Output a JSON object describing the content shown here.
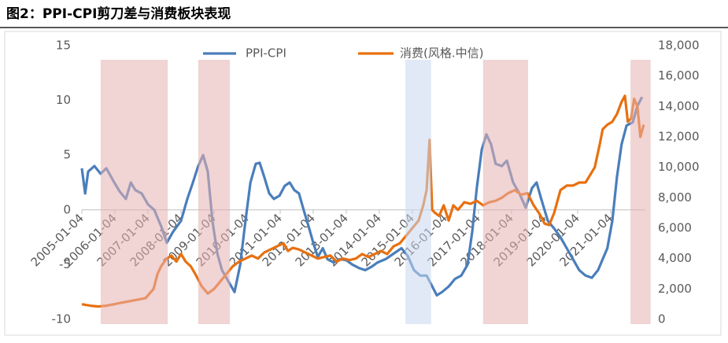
{
  "chart_data": {
    "type": "line",
    "title": "图2：PPI-CPI剪刀差与消费板块表现",
    "xlim": [
      2005,
      2022.05
    ],
    "xticks": [
      {
        "value": 2005,
        "label": "2005-01-04"
      },
      {
        "value": 2006,
        "label": "2006-01-04"
      },
      {
        "value": 2007,
        "label": "2007-01-04"
      },
      {
        "value": 2008,
        "label": "2008-01-04"
      },
      {
        "value": 2009,
        "label": "2009-01-04"
      },
      {
        "value": 2010,
        "label": "2010-01-04"
      },
      {
        "value": 2011,
        "label": "2011-01-04"
      },
      {
        "value": 2012,
        "label": "2012-01-04"
      },
      {
        "value": 2013,
        "label": "2013-01-04"
      },
      {
        "value": 2014,
        "label": "2014-01-04"
      },
      {
        "value": 2015,
        "label": "2015-01-04"
      },
      {
        "value": 2016,
        "label": "2016-01-04"
      },
      {
        "value": 2017,
        "label": "2017-01-04"
      },
      {
        "value": 2018,
        "label": "2018-01-04"
      },
      {
        "value": 2019,
        "label": "2019-01-04"
      },
      {
        "value": 2020,
        "label": "2020-01-04"
      },
      {
        "value": 2021,
        "label": "2021-01-04"
      }
    ],
    "ylim": [
      -10,
      15
    ],
    "yticks": [
      15,
      10,
      5,
      0,
      -5,
      -10
    ],
    "y2lim": [
      0,
      18000
    ],
    "y2ticks": [
      {
        "value": 18000,
        "label": "18,000"
      },
      {
        "value": 16000,
        "label": "16,000"
      },
      {
        "value": 14000,
        "label": "14,000"
      },
      {
        "value": 12000,
        "label": "12,000"
      },
      {
        "value": 10000,
        "label": "10,000"
      },
      {
        "value": 8000,
        "label": "8,000"
      },
      {
        "value": 6000,
        "label": "6,000"
      },
      {
        "value": 4000,
        "label": "4,000"
      },
      {
        "value": 2000,
        "label": "2,000"
      },
      0
    ],
    "shaded_regions": [
      {
        "start": 2005.57,
        "end": 2007.6,
        "color": "#e6b0b0"
      },
      {
        "start": 2008.52,
        "end": 2009.48,
        "color": "#e6b0b0"
      },
      {
        "start": 2014.79,
        "end": 2015.57,
        "color": "#c9d7ee"
      },
      {
        "start": 2017.14,
        "end": 2018.5,
        "color": "#e6b0b0"
      },
      {
        "start": 2021.6,
        "end": 2022.21,
        "color": "#e6b0b0"
      }
    ],
    "series": [
      {
        "name": "PPI-CPI",
        "color": "#4a7ebb",
        "x": [
          2005.0,
          2005.1,
          2005.19,
          2005.38,
          2005.57,
          2005.74,
          2005.98,
          2006.14,
          2006.33,
          2006.48,
          2006.62,
          2006.81,
          2007.0,
          2007.19,
          2007.4,
          2007.57,
          2007.76,
          2008.0,
          2008.19,
          2008.36,
          2008.52,
          2008.67,
          2008.81,
          2008.95,
          2009.1,
          2009.24,
          2009.43,
          2009.62,
          2009.79,
          2009.95,
          2010.1,
          2010.26,
          2010.38,
          2010.52,
          2010.67,
          2010.81,
          2010.98,
          2011.14,
          2011.29,
          2011.43,
          2011.57,
          2011.71,
          2011.86,
          2012.0,
          2012.14,
          2012.29,
          2012.43,
          2012.62,
          2012.81,
          2013.0,
          2013.19,
          2013.38,
          2013.57,
          2013.76,
          2013.95,
          2014.19,
          2014.43,
          2014.67,
          2014.86,
          2015.05,
          2015.24,
          2015.43,
          2015.57,
          2015.74,
          2015.9,
          2016.1,
          2016.29,
          2016.48,
          2016.67,
          2016.81,
          2016.95,
          2017.1,
          2017.24,
          2017.38,
          2017.52,
          2017.71,
          2017.86,
          2018.05,
          2018.24,
          2018.43,
          2018.62,
          2018.76,
          2018.9,
          2019.1,
          2019.29,
          2019.48,
          2019.67,
          2019.86,
          2020.05,
          2020.24,
          2020.43,
          2020.62,
          2020.76,
          2020.9,
          2021.05,
          2021.19,
          2021.33,
          2021.48,
          2021.67,
          2021.81,
          2021.95
        ],
        "values": [
          3.8,
          1.5,
          3.5,
          4.0,
          3.3,
          3.8,
          2.5,
          1.7,
          1.0,
          2.5,
          1.8,
          1.5,
          0.5,
          0,
          -1.5,
          -3,
          -2,
          -1,
          1.0,
          2.5,
          4.0,
          5.0,
          3.5,
          -1,
          -4,
          -5.5,
          -6.5,
          -7.5,
          -5,
          -1,
          2.5,
          4.2,
          4.3,
          3.0,
          1.5,
          1.0,
          1.3,
          2.2,
          2.5,
          1.8,
          1.5,
          0,
          -1.5,
          -3,
          -4.3,
          -3.5,
          -4.5,
          -4.8,
          -4.5,
          -4.6,
          -5.0,
          -5.3,
          -5.5,
          -5.2,
          -4.8,
          -4.5,
          -4.0,
          -3.5,
          -4.2,
          -5.5,
          -6.0,
          -6.0,
          -6.8,
          -7.8,
          -7.5,
          -7.0,
          -6.3,
          -6.0,
          -5.0,
          -2,
          2,
          5.5,
          6.9,
          6.0,
          4.2,
          4.0,
          4.5,
          2.5,
          1.5,
          0.2,
          2.0,
          2.5,
          1.0,
          -1.0,
          -1.7,
          -2.5,
          -3.5,
          -4.5,
          -5.5,
          -6.0,
          -6.2,
          -5.5,
          -4.5,
          -3.5,
          -1,
          3,
          6,
          7.7,
          8.0,
          9.5,
          10.3
        ]
      },
      {
        "name": "消费(风格.中信)",
        "color": "#e8700f",
        "axis": "y2",
        "x": [
          2005.0,
          2005.26,
          2005.5,
          2005.74,
          2005.98,
          2006.21,
          2006.45,
          2006.69,
          2006.93,
          2007.17,
          2007.29,
          2007.4,
          2007.57,
          2007.71,
          2007.86,
          2008.0,
          2008.14,
          2008.29,
          2008.43,
          2008.62,
          2008.81,
          2009.0,
          2009.19,
          2009.38,
          2009.57,
          2009.76,
          2009.95,
          2010.14,
          2010.33,
          2010.52,
          2010.71,
          2010.9,
          2011.1,
          2011.24,
          2011.38,
          2011.57,
          2011.76,
          2011.95,
          2012.14,
          2012.33,
          2012.52,
          2012.71,
          2012.9,
          2013.1,
          2013.29,
          2013.48,
          2013.67,
          2013.86,
          2014.05,
          2014.24,
          2014.43,
          2014.62,
          2014.81,
          2015.0,
          2015.19,
          2015.33,
          2015.43,
          2015.52,
          2015.6,
          2015.69,
          2015.81,
          2015.95,
          2016.1,
          2016.24,
          2016.38,
          2016.57,
          2016.76,
          2016.95,
          2017.14,
          2017.33,
          2017.52,
          2017.71,
          2017.9,
          2018.1,
          2018.29,
          2018.48,
          2018.67,
          2018.86,
          2019.0,
          2019.14,
          2019.29,
          2019.48,
          2019.67,
          2019.86,
          2020.05,
          2020.24,
          2020.38,
          2020.52,
          2020.67,
          2020.76,
          2020.9,
          2021.05,
          2021.19,
          2021.33,
          2021.43,
          2021.52,
          2021.62,
          2021.71,
          2021.81,
          2021.9,
          2022.0
        ],
        "values": [
          1000,
          900,
          850,
          900,
          1000,
          1100,
          1200,
          1300,
          1400,
          2000,
          3000,
          3500,
          4000,
          4200,
          3800,
          4300,
          3800,
          3500,
          3000,
          2200,
          1700,
          2000,
          2500,
          3000,
          3500,
          3800,
          4000,
          4200,
          4000,
          4400,
          4600,
          4800,
          5000,
          4500,
          4700,
          4600,
          4400,
          4200,
          4000,
          4100,
          4200,
          3800,
          4000,
          3900,
          4000,
          4300,
          4100,
          4300,
          4500,
          4300,
          4800,
          5000,
          5500,
          6000,
          6500,
          7500,
          8500,
          11800,
          7200,
          7000,
          6800,
          7500,
          6500,
          7500,
          7200,
          7700,
          7600,
          7800,
          7500,
          7700,
          7800,
          8000,
          8300,
          8500,
          8200,
          8300,
          7500,
          6900,
          6300,
          6200,
          7000,
          8500,
          8800,
          8800,
          9000,
          9000,
          9500,
          10000,
          11500,
          12500,
          12800,
          13000,
          13500,
          14300,
          14700,
          13000,
          13200,
          14500,
          14000,
          12000,
          12800
        ]
      }
    ]
  }
}
